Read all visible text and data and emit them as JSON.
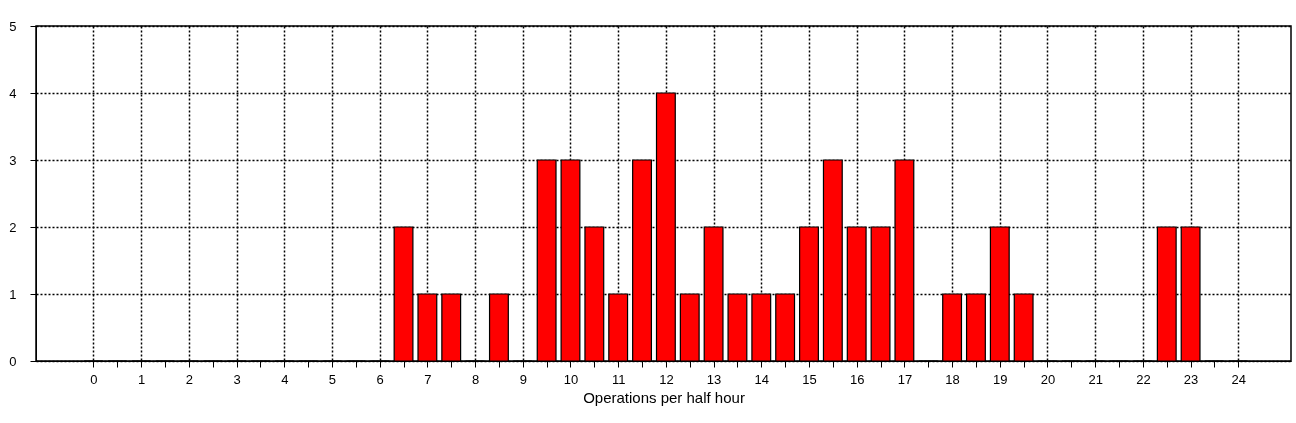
{
  "chart_data": {
    "type": "bar",
    "xlabel": "Operations per half hour",
    "x": [
      0,
      0.5,
      1,
      1.5,
      2,
      2.5,
      3,
      3.5,
      4,
      4.5,
      5,
      5.5,
      6,
      6.5,
      7,
      7.5,
      8,
      8.5,
      9,
      9.5,
      10,
      10.5,
      11,
      11.5,
      12,
      12.5,
      13,
      13.5,
      14,
      14.5,
      15,
      15.5,
      16,
      16.5,
      17,
      17.5,
      18,
      18.5,
      19,
      19.5,
      20,
      20.5,
      21,
      21.5,
      22,
      22.5,
      23,
      23.5,
      24
    ],
    "values": [
      0,
      0,
      0,
      0,
      0,
      0,
      0,
      0,
      0,
      0,
      0,
      0,
      0,
      2,
      1,
      1,
      0,
      1,
      0,
      3,
      3,
      2,
      1,
      3,
      4,
      1,
      2,
      1,
      1,
      1,
      2,
      3,
      2,
      2,
      3,
      0,
      1,
      1,
      2,
      1,
      0,
      0,
      0,
      0,
      0,
      2,
      2,
      0,
      0
    ],
    "color": "#ff0000",
    "xlim": [
      -1.1,
      25
    ],
    "xticks": [
      0,
      {
        "value": 0.5,
        "label": null
      },
      1,
      {
        "value": 1.5,
        "label": null
      },
      2,
      {
        "value": 2.5,
        "label": null
      },
      3,
      {
        "value": 3.5,
        "label": null
      },
      4,
      {
        "value": 4.5,
        "label": null
      },
      5,
      {
        "value": 5.5,
        "label": null
      },
      6,
      {
        "value": 6.5,
        "label": null
      },
      7,
      {
        "value": 7.5,
        "label": null
      },
      8,
      {
        "value": 8.5,
        "label": null
      },
      9,
      {
        "value": 9.5,
        "label": null
      },
      10,
      {
        "value": 10.5,
        "label": null
      },
      11,
      {
        "value": 11.5,
        "label": null
      },
      12,
      {
        "value": 12.5,
        "label": null
      },
      13,
      {
        "value": 13.5,
        "label": null
      },
      14,
      {
        "value": 14.5,
        "label": null
      },
      15,
      {
        "value": 15.5,
        "label": null
      },
      16,
      {
        "value": 16.5,
        "label": null
      },
      17,
      {
        "value": 17.5,
        "label": null
      },
      18,
      {
        "value": 18.5,
        "label": null
      },
      19,
      {
        "value": 19.5,
        "label": null
      },
      20,
      {
        "value": 20.5,
        "label": null
      },
      21,
      {
        "value": 21.5,
        "label": null
      },
      22,
      {
        "value": 22.5,
        "label": null
      },
      23,
      {
        "value": 23.5,
        "label": null
      },
      24
    ],
    "ylim": [
      0,
      5
    ],
    "yticks": [
      0,
      1,
      2,
      3,
      4,
      5
    ],
    "grid": true
  }
}
